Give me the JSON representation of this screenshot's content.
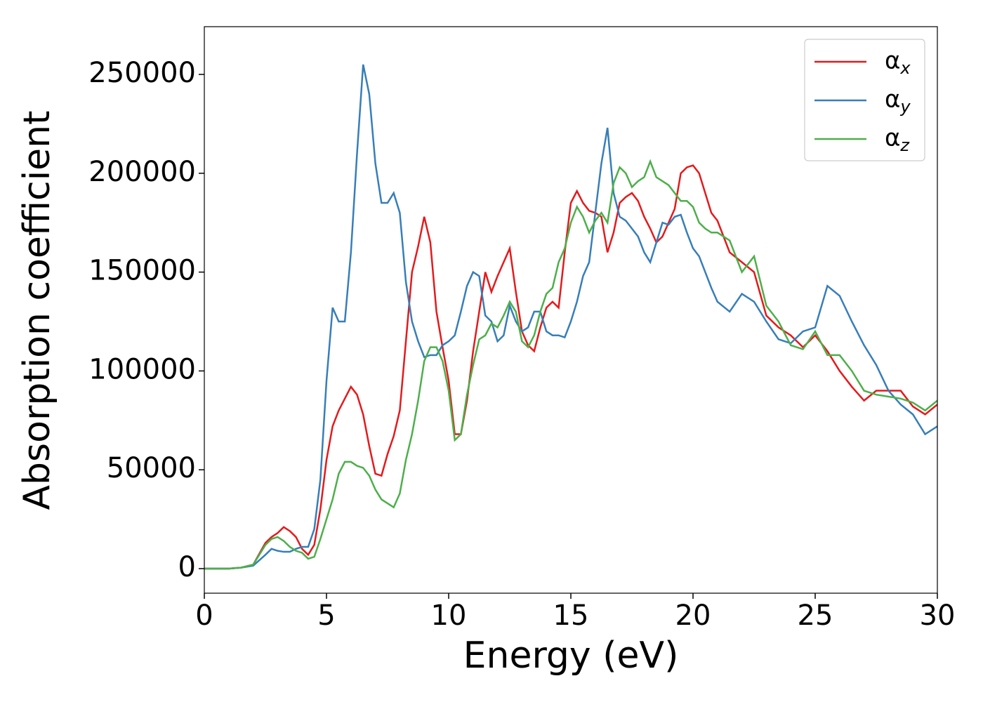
{
  "chart_data": {
    "type": "line",
    "xlabel": "Energy (eV)",
    "ylabel": "Absorption coefficient",
    "x": [
      0,
      1,
      1.5,
      2,
      2.5,
      2.75,
      3,
      3.25,
      3.5,
      3.75,
      4,
      4.25,
      4.5,
      4.75,
      5,
      5.25,
      5.5,
      5.75,
      6,
      6.25,
      6.5,
      6.75,
      7,
      7.25,
      7.5,
      7.75,
      8,
      8.25,
      8.5,
      8.75,
      9,
      9.25,
      9.5,
      9.75,
      10,
      10.25,
      10.5,
      10.75,
      11,
      11.25,
      11.5,
      11.75,
      12,
      12.25,
      12.5,
      12.75,
      13,
      13.25,
      13.5,
      13.75,
      14,
      14.25,
      14.5,
      14.75,
      15,
      15.25,
      15.5,
      15.75,
      16,
      16.25,
      16.5,
      16.75,
      17,
      17.25,
      17.5,
      17.75,
      18,
      18.25,
      18.5,
      18.75,
      19,
      19.25,
      19.5,
      19.75,
      20,
      20.25,
      20.5,
      20.75,
      21,
      21.5,
      22,
      22.5,
      23,
      23.5,
      24,
      24.5,
      25,
      25.5,
      26,
      26.5,
      27,
      27.5,
      28,
      28.5,
      29,
      29.5,
      30
    ],
    "series": [
      {
        "name": "αx",
        "color": "#e41a1c",
        "values": [
          0,
          0,
          500,
          2000,
          13000,
          16000,
          18000,
          21000,
          19000,
          16000,
          10000,
          7000,
          12000,
          30000,
          55000,
          72000,
          80000,
          86000,
          92000,
          88000,
          78000,
          62000,
          48000,
          47000,
          58000,
          67000,
          80000,
          115000,
          150000,
          163000,
          178000,
          165000,
          130000,
          112000,
          95000,
          68000,
          68000,
          85000,
          110000,
          130000,
          150000,
          140000,
          148000,
          155000,
          162000,
          140000,
          120000,
          113000,
          110000,
          122000,
          132000,
          135000,
          132000,
          160000,
          185000,
          191000,
          185000,
          181000,
          180000,
          178000,
          160000,
          170000,
          185000,
          188000,
          190000,
          186000,
          178000,
          172000,
          165000,
          168000,
          175000,
          182000,
          200000,
          203000,
          204000,
          200000,
          190000,
          180000,
          176000,
          160000,
          155000,
          150000,
          128000,
          122000,
          118000,
          112000,
          118000,
          110000,
          100000,
          92000,
          85000,
          90000,
          90000,
          90000,
          82000,
          78000,
          83000
        ]
      },
      {
        "name": "αy",
        "color": "#377eb8",
        "values": [
          0,
          0,
          500,
          1500,
          7000,
          10000,
          9000,
          8500,
          8500,
          10000,
          11000,
          11000,
          20000,
          45000,
          95000,
          132000,
          125000,
          125000,
          160000,
          210000,
          255000,
          240000,
          205000,
          185000,
          185000,
          190000,
          180000,
          145000,
          125000,
          115000,
          107000,
          108000,
          108000,
          113000,
          115000,
          118000,
          130000,
          143000,
          150000,
          148000,
          128000,
          125000,
          115000,
          118000,
          133000,
          125000,
          120000,
          122000,
          130000,
          130000,
          120000,
          118000,
          118000,
          117000,
          125000,
          135000,
          148000,
          155000,
          180000,
          205000,
          223000,
          190000,
          178000,
          176000,
          172000,
          168000,
          160000,
          155000,
          165000,
          175000,
          174000,
          178000,
          179000,
          170000,
          162000,
          158000,
          150000,
          142000,
          135000,
          130000,
          139000,
          135000,
          125000,
          116000,
          114000,
          120000,
          122000,
          143000,
          138000,
          125000,
          113000,
          103000,
          90000,
          83000,
          78000,
          68000,
          72000
        ]
      },
      {
        "name": "αz",
        "color": "#4daf4a",
        "values": [
          0,
          0,
          500,
          2000,
          12000,
          15000,
          16000,
          14000,
          11000,
          9000,
          8000,
          5000,
          6000,
          15000,
          25000,
          35000,
          48000,
          54000,
          54000,
          52000,
          51000,
          47000,
          40000,
          35000,
          33000,
          31000,
          38000,
          55000,
          68000,
          85000,
          105000,
          112000,
          112000,
          105000,
          90000,
          65000,
          68000,
          88000,
          103000,
          116000,
          118000,
          124000,
          122000,
          128000,
          135000,
          130000,
          115000,
          112000,
          118000,
          130000,
          139000,
          142000,
          155000,
          162000,
          175000,
          183000,
          178000,
          170000,
          176000,
          180000,
          175000,
          195000,
          203000,
          200000,
          193000,
          196000,
          198000,
          206000,
          198000,
          196000,
          194000,
          190000,
          186000,
          186000,
          183000,
          175000,
          172000,
          170000,
          170000,
          166000,
          150000,
          158000,
          133000,
          125000,
          113000,
          111000,
          120000,
          108000,
          108000,
          100000,
          90000,
          88000,
          87000,
          86000,
          84000,
          80000,
          85000
        ]
      }
    ],
    "xlim": [
      0,
      30
    ],
    "xticks": [
      0,
      5,
      10,
      15,
      20,
      25,
      30
    ],
    "ylim": [
      -12430,
      274150
    ],
    "yticks": [
      0,
      50000,
      100000,
      150000,
      200000,
      250000
    ],
    "legend": "upper right",
    "grid": false
  }
}
